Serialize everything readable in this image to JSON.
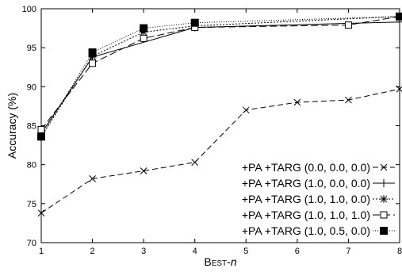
{
  "chart_data": {
    "type": "line",
    "xlabel": "Best-n",
    "ylabel": "Accuracy (%)",
    "xlim": [
      1,
      8
    ],
    "ylim": [
      70,
      100
    ],
    "xticks": [
      1,
      2,
      3,
      4,
      5,
      6,
      7,
      8
    ],
    "yticks": [
      70,
      75,
      80,
      85,
      90,
      95,
      100
    ],
    "grid": false,
    "legend_position": "bottom-right",
    "series": [
      {
        "name": "+PA +TARG (0.0, 0.0, 0.0)",
        "x": [
          1,
          2,
          3,
          4,
          5,
          6,
          7,
          8
        ],
        "y": [
          73.8,
          78.2,
          79.2,
          80.3,
          87.0,
          88.0,
          88.3,
          89.7
        ],
        "marker": "x",
        "line": "dashed"
      },
      {
        "name": "+PA +TARG (1.0, 0.0, 0.0)",
        "x": [
          1,
          2,
          4,
          8
        ],
        "y": [
          84.0,
          93.8,
          97.6,
          98.3
        ],
        "marker": "plus",
        "line": "solid"
      },
      {
        "name": "+PA +TARG (1.0, 1.0, 0.0)",
        "x": [
          1,
          2,
          3,
          4,
          8
        ],
        "y": [
          83.6,
          93.9,
          97.0,
          97.8,
          99.0
        ],
        "marker": "star",
        "line": "dotted"
      },
      {
        "name": "+PA +TARG (1.0, 1.0, 1.0)",
        "x": [
          1,
          2,
          3,
          4,
          7,
          8
        ],
        "y": [
          84.5,
          93.0,
          96.2,
          97.6,
          97.9,
          99.0
        ],
        "marker": "open-square",
        "line": "long-dash"
      },
      {
        "name": "+PA +TARG (1.0, 0.5, 0.0)",
        "x": [
          1,
          2,
          3,
          4,
          8
        ],
        "y": [
          83.6,
          94.4,
          97.5,
          98.2,
          99.0
        ],
        "marker": "filled-square",
        "line": "fine-dotted"
      }
    ]
  }
}
